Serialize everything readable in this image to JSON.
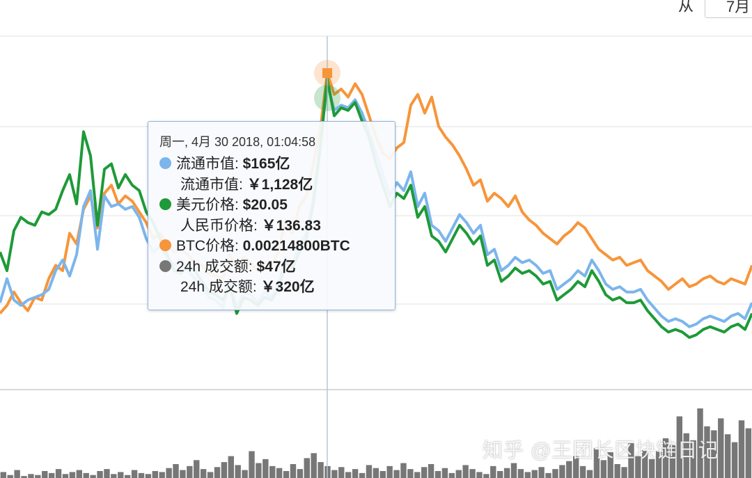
{
  "controls": {
    "from_label": "从",
    "date_value": "7月"
  },
  "tooltip": {
    "header": "周一, 4月 30 2018, 01:04:58",
    "rows": [
      {
        "label": "流通市值: ",
        "value": "$165亿",
        "color": "#7cb5ec"
      },
      {
        "label": "流通市值: ",
        "value": "￥1,128亿"
      },
      {
        "label": "美元价格: ",
        "value": "$20.05",
        "color": "#1e9a38"
      },
      {
        "label": "人民币价格: ",
        "value": "￥136.83"
      },
      {
        "label": "BTC价格: ",
        "value": "0.00214800BTC",
        "color": "#f7953a"
      },
      {
        "label": "24h 成交额: ",
        "value": "$47亿",
        "color": "#777777"
      },
      {
        "label": "24h 成交额: ",
        "value": "￥320亿"
      }
    ]
  },
  "watermark": "知乎 @王团长区块链日记",
  "colors": {
    "market_cap": "#7cb5ec",
    "usd_price": "#1e9a38",
    "btc_price": "#f7953a",
    "volume": "#777777",
    "grid": "#e6e6e6",
    "crosshair": "#b8c6d4"
  },
  "chart_data": {
    "type": "line",
    "note_units": "relative scale, no axis labels visible",
    "x": [
      0,
      1,
      2,
      3,
      4,
      5,
      6,
      7,
      8,
      9,
      10,
      11,
      12,
      13,
      14,
      15,
      16,
      17,
      18,
      19,
      20,
      21,
      22,
      23,
      24,
      25,
      26,
      27,
      28,
      29,
      30,
      31,
      32,
      33,
      34,
      35,
      36,
      37,
      38,
      39,
      40,
      41,
      42,
      43,
      44,
      45,
      46,
      47,
      48,
      49,
      50,
      51,
      52,
      53,
      54,
      55,
      56,
      57,
      58,
      59,
      60,
      61,
      62,
      63,
      64,
      65,
      66,
      67,
      68,
      69,
      70,
      71,
      72,
      73,
      74,
      75,
      76,
      77,
      78,
      79,
      80,
      81,
      82,
      83,
      84,
      85,
      86,
      87,
      88,
      89,
      90,
      91,
      92,
      93,
      94,
      95,
      96,
      97,
      98,
      99,
      100,
      101,
      102,
      103,
      104,
      105,
      106,
      107,
      108
    ],
    "series": [
      {
        "key": "market_cap",
        "values": [
          26,
          35,
          27,
          25,
          27,
          28,
          29,
          31,
          38,
          42,
          36,
          44,
          62,
          68,
          46,
          66,
          62,
          63,
          61,
          62,
          58,
          50,
          45,
          47,
          43,
          40,
          42,
          38,
          35,
          33,
          28,
          27,
          24,
          34,
          24,
          30,
          29,
          26,
          30,
          28,
          33,
          43,
          40,
          48,
          52,
          65,
          86,
          108,
          98,
          100,
          99,
          102,
          97,
          90,
          82,
          74,
          66,
          71,
          68,
          75,
          62,
          67,
          55,
          53,
          49,
          54,
          59,
          56,
          52,
          55,
          44,
          46,
          38,
          40,
          43,
          41,
          42,
          40,
          37,
          38,
          31,
          33,
          35,
          38,
          36,
          42,
          38,
          33,
          31,
          32,
          30,
          30,
          31,
          27,
          24,
          21,
          19,
          20,
          19,
          17,
          18,
          20,
          21,
          20,
          19,
          21,
          22,
          20,
          26
        ]
      },
      {
        "key": "usd_price",
        "values": [
          45,
          38,
          53,
          58,
          56,
          55,
          60,
          59,
          61,
          68,
          74,
          63,
          90,
          81,
          55,
          76,
          78,
          69,
          74,
          70,
          68,
          60,
          56,
          50,
          44,
          38,
          37,
          40,
          38,
          34,
          30,
          29,
          27,
          32,
          22,
          28,
          27,
          25,
          28,
          27,
          31,
          41,
          39,
          45,
          50,
          63,
          84,
          110,
          96,
          99,
          98,
          101,
          94,
          88,
          78,
          70,
          62,
          67,
          65,
          70,
          58,
          62,
          51,
          49,
          45,
          50,
          55,
          52,
          48,
          51,
          40,
          42,
          34,
          36,
          39,
          37,
          38,
          36,
          33,
          34,
          27,
          29,
          31,
          34,
          32,
          38,
          34,
          29,
          27,
          28,
          26,
          26,
          27,
          23,
          20,
          17,
          15,
          16,
          15,
          13,
          14,
          16,
          17,
          16,
          15,
          17,
          18,
          16,
          22
        ]
      },
      {
        "key": "btc_price",
        "values": [
          22,
          25,
          30,
          26,
          23,
          28,
          27,
          35,
          40,
          38,
          52,
          48,
          61,
          66,
          54,
          67,
          70,
          63,
          66,
          64,
          60,
          56,
          50,
          52,
          48,
          45,
          46,
          44,
          41,
          40,
          37,
          36,
          35,
          44,
          39,
          43,
          41,
          38,
          41,
          40,
          45,
          57,
          52,
          62,
          66,
          78,
          91,
          112,
          104,
          106,
          103,
          108,
          104,
          96,
          88,
          82,
          80,
          84,
          86,
          100,
          104,
          97,
          103,
          92,
          88,
          85,
          81,
          76,
          70,
          72,
          64,
          67,
          65,
          62,
          66,
          60,
          57,
          55,
          52,
          50,
          48,
          51,
          53,
          56,
          54,
          50,
          46,
          44,
          42,
          43,
          40,
          41,
          42,
          38,
          36,
          34,
          31,
          33,
          35,
          32,
          33,
          35,
          36,
          34,
          33,
          35,
          34,
          33,
          40
        ]
      }
    ],
    "volume": [
      6,
      3,
      8,
      2,
      4,
      3,
      7,
      5,
      9,
      4,
      6,
      8,
      5,
      3,
      7,
      9,
      4,
      6,
      3,
      8,
      5,
      4,
      7,
      6,
      10,
      14,
      8,
      12,
      18,
      9,
      6,
      11,
      16,
      22,
      13,
      8,
      27,
      15,
      19,
      12,
      10,
      7,
      14,
      9,
      20,
      25,
      16,
      12,
      8,
      11,
      6,
      9,
      5,
      13,
      10,
      7,
      12,
      8,
      15,
      9,
      6,
      11,
      14,
      7,
      10,
      5,
      8,
      13,
      9,
      6,
      4,
      12,
      7,
      10,
      15,
      9,
      6,
      8,
      11,
      5,
      9,
      13,
      17,
      22,
      12,
      8,
      30,
      18,
      26,
      14,
      11,
      35,
      22,
      28,
      19,
      27,
      40,
      33,
      62,
      45,
      38,
      70,
      52,
      48,
      60,
      44,
      36,
      58,
      50
    ]
  }
}
